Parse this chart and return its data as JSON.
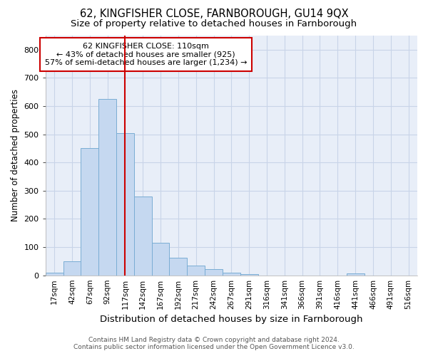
{
  "title": "62, KINGFISHER CLOSE, FARNBOROUGH, GU14 9QX",
  "subtitle": "Size of property relative to detached houses in Farnborough",
  "xlabel": "Distribution of detached houses by size in Farnborough",
  "ylabel": "Number of detached properties",
  "bar_labels": [
    "17sqm",
    "42sqm",
    "67sqm",
    "92sqm",
    "117sqm",
    "142sqm",
    "167sqm",
    "192sqm",
    "217sqm",
    "242sqm",
    "267sqm",
    "291sqm",
    "316sqm",
    "341sqm",
    "366sqm",
    "391sqm",
    "416sqm",
    "441sqm",
    "466sqm",
    "491sqm",
    "516sqm"
  ],
  "bar_values": [
    10,
    50,
    450,
    625,
    505,
    280,
    115,
    62,
    35,
    22,
    10,
    5,
    0,
    0,
    0,
    0,
    0,
    8,
    0,
    0,
    0
  ],
  "bar_color": "#c5d8f0",
  "bar_edge_color": "#7aadd4",
  "vline_x": 4.0,
  "vline_color": "#cc0000",
  "ylim": [
    0,
    850
  ],
  "yticks": [
    0,
    100,
    200,
    300,
    400,
    500,
    600,
    700,
    800
  ],
  "annotation_box_text": "62 KINGFISHER CLOSE: 110sqm\n← 43% of detached houses are smaller (925)\n57% of semi-detached houses are larger (1,234) →",
  "footer_line1": "Contains HM Land Registry data © Crown copyright and database right 2024.",
  "footer_line2": "Contains public sector information licensed under the Open Government Licence v3.0.",
  "grid_color": "#c8d4e8",
  "bg_color": "#e8eef8",
  "title_fontsize": 10.5,
  "subtitle_fontsize": 9.5,
  "ylabel_fontsize": 8.5,
  "xlabel_fontsize": 9.5
}
